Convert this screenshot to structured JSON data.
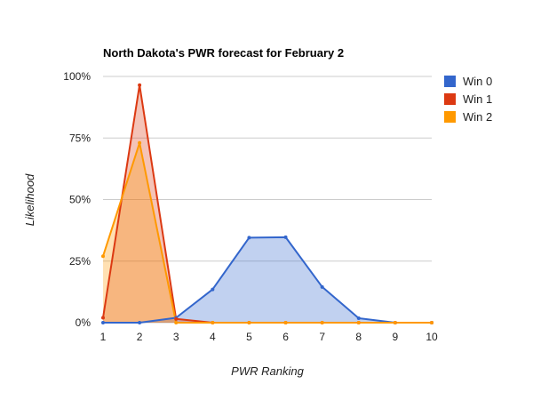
{
  "chart_data": {
    "type": "area",
    "title": "North Dakota's PWR forecast for February 2",
    "xlabel": "PWR Ranking",
    "ylabel": "Likelihood",
    "categories": [
      1,
      2,
      3,
      4,
      5,
      6,
      7,
      8,
      9,
      10
    ],
    "ylim": [
      0,
      100
    ],
    "y_ticks": [
      "0%",
      "25%",
      "50%",
      "75%",
      "100%"
    ],
    "y_tick_values": [
      0,
      25,
      50,
      75,
      100
    ],
    "grid": true,
    "legend_position": "right",
    "series": [
      {
        "name": "Win 0",
        "color": "#3366cc",
        "values": [
          0,
          0,
          2,
          13.5,
          34.5,
          34.7,
          14.5,
          1.8,
          0,
          0
        ]
      },
      {
        "name": "Win 1",
        "color": "#dc3912",
        "values": [
          2,
          96.5,
          1.5,
          0,
          0,
          0,
          0,
          0,
          0,
          0
        ]
      },
      {
        "name": "Win 2",
        "color": "#ff9900",
        "values": [
          27,
          73,
          0,
          0,
          0,
          0,
          0,
          0,
          0,
          0
        ]
      }
    ]
  }
}
